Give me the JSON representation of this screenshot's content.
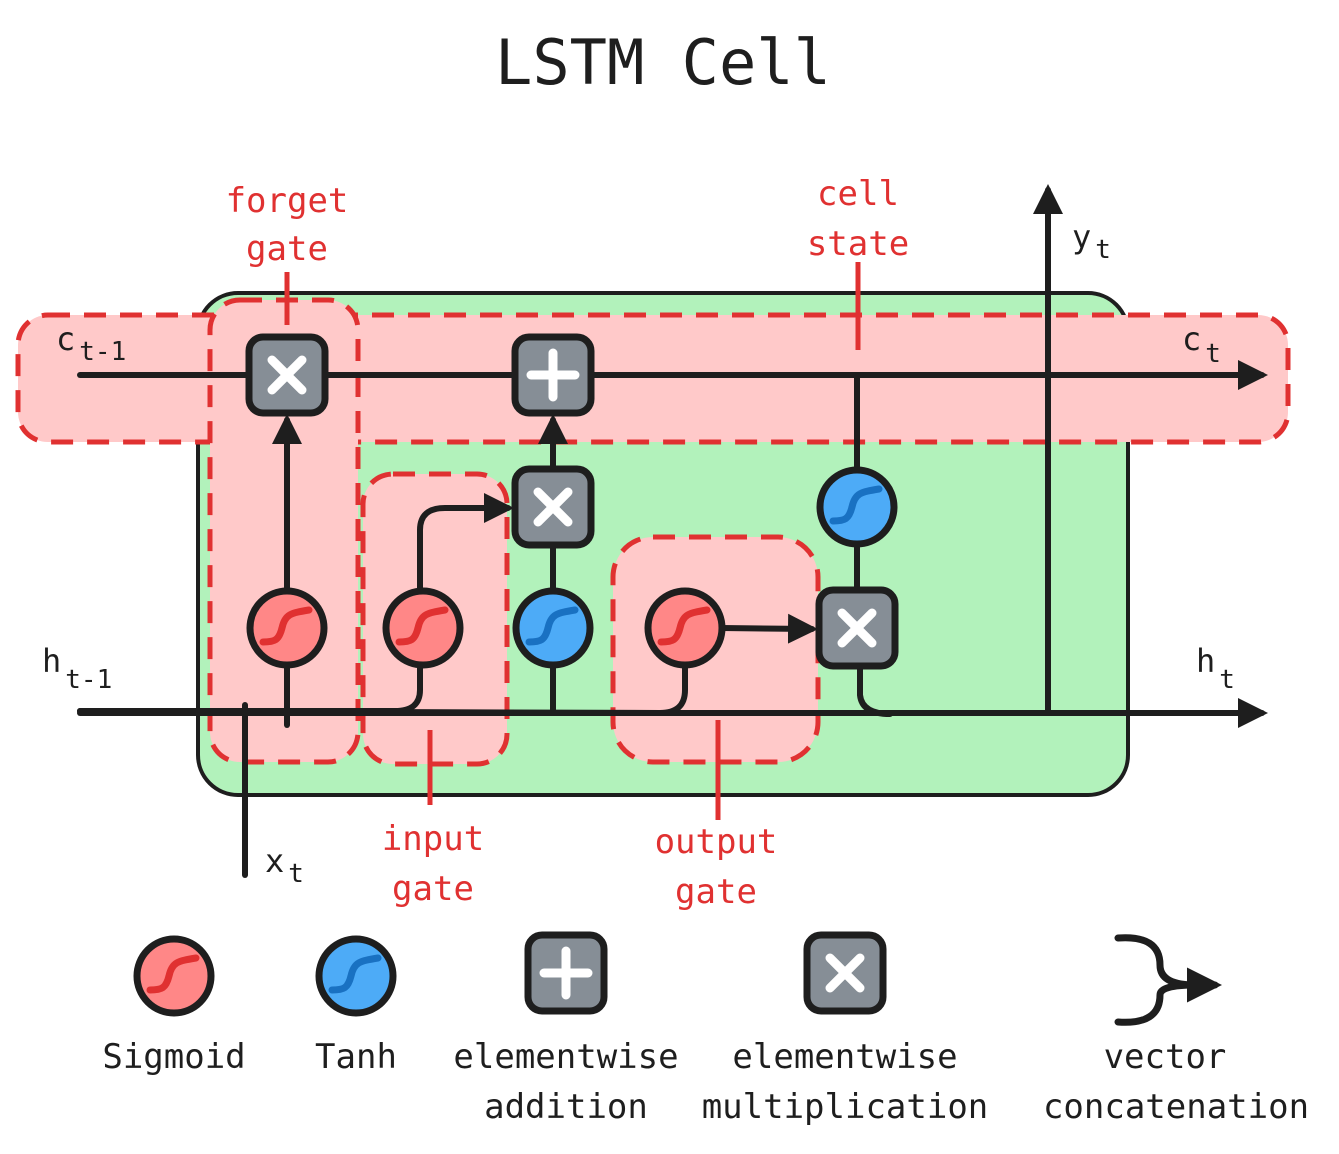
{
  "title": "LSTM Cell",
  "labels": {
    "c_prev": "c",
    "c_prev_sub": "t-1",
    "c_next": "c",
    "c_next_sub": "t",
    "h_prev": "h",
    "h_prev_sub": "t-1",
    "h_next": "h",
    "h_next_sub": "t",
    "x": "x",
    "x_sub": "t",
    "y": "y",
    "y_sub": "t"
  },
  "gates": {
    "forget": [
      "forget",
      "gate"
    ],
    "input": [
      "input",
      "gate"
    ],
    "output": [
      "output",
      "gate"
    ],
    "cell_state": [
      "cell",
      "state"
    ]
  },
  "legend": [
    {
      "icon": "sigmoid-icon",
      "lines": [
        "Sigmoid"
      ]
    },
    {
      "icon": "tanh-icon",
      "lines": [
        "Tanh"
      ]
    },
    {
      "icon": "addition-icon",
      "lines": [
        "elementwise",
        "addition"
      ]
    },
    {
      "icon": "multiplication-icon",
      "lines": [
        "elementwise",
        "multiplication"
      ]
    },
    {
      "icon": "concatenation-icon",
      "lines": [
        "vector",
        "concatenation"
      ]
    }
  ],
  "colors": {
    "cell_body": "#b2f2bb",
    "gate_zone": "#ffc9c9",
    "gate_outline": "#e03131",
    "sigmoid": "#ff8787",
    "tanh": "#4dabf7",
    "operator": "#868e96",
    "ink": "#1e1e1e"
  }
}
